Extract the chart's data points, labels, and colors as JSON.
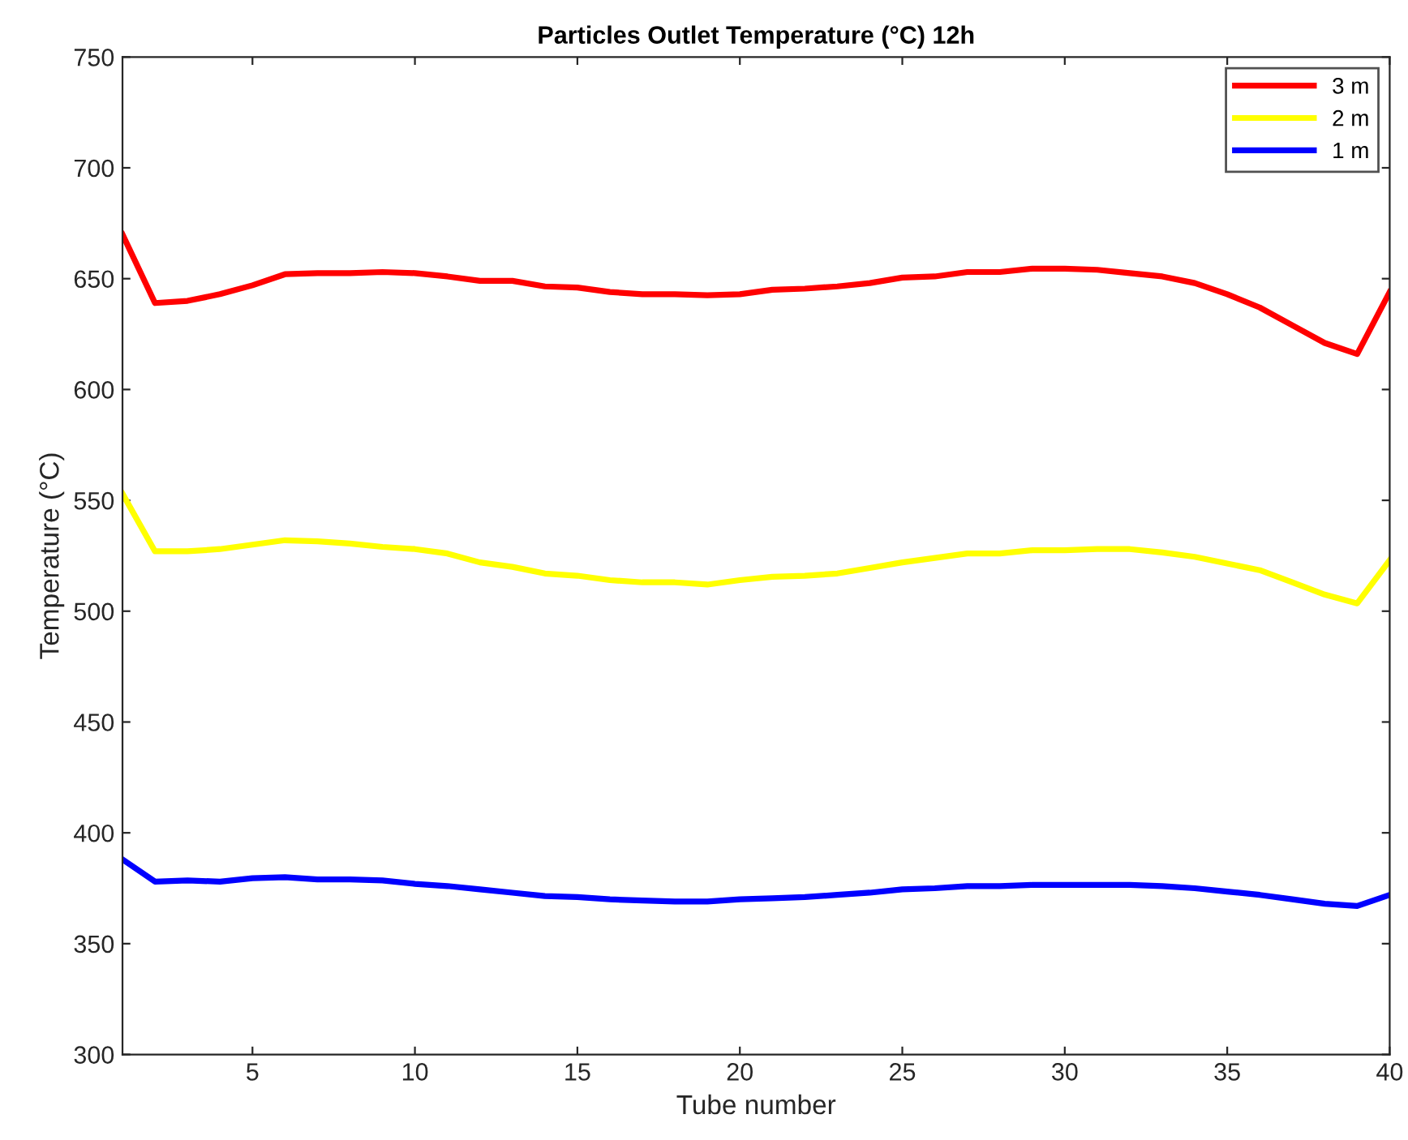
{
  "chart_data": {
    "type": "line",
    "title": "Particles Outlet Temperature (°C) 12h",
    "xlabel": "Tube number",
    "ylabel": "Temperature (°C)",
    "x": [
      1,
      2,
      3,
      4,
      5,
      6,
      7,
      8,
      9,
      10,
      11,
      12,
      13,
      14,
      15,
      16,
      17,
      18,
      19,
      20,
      21,
      22,
      23,
      24,
      25,
      26,
      27,
      28,
      29,
      30,
      31,
      32,
      33,
      34,
      35,
      36,
      37,
      38,
      39,
      40
    ],
    "series": [
      {
        "name": "3 m",
        "color": "#ff0000",
        "values": [
          670,
          639,
          640,
          643,
          647,
          652,
          652.5,
          652.5,
          653,
          652.5,
          651,
          649,
          649,
          646.5,
          646,
          644,
          643,
          643,
          642.5,
          643,
          645,
          645.5,
          646.5,
          648,
          650.5,
          651,
          653,
          653,
          654.5,
          654.5,
          654,
          652.5,
          651,
          648,
          643,
          637,
          629,
          621,
          616,
          644
        ]
      },
      {
        "name": "2 m",
        "color": "#ffff00",
        "values": [
          553,
          527,
          527,
          528,
          530,
          532,
          531.5,
          530.5,
          529,
          528,
          526,
          522,
          520,
          517,
          516,
          514,
          513,
          513,
          512,
          514,
          515.5,
          516,
          517,
          519.5,
          522,
          524,
          526,
          526,
          527.5,
          527.5,
          528,
          528,
          526.5,
          524.5,
          521.5,
          518.5,
          513,
          507.5,
          503.5,
          523
        ]
      },
      {
        "name": "1 m",
        "color": "#0000ff",
        "values": [
          388,
          378,
          378.5,
          378,
          379.5,
          380,
          379,
          379,
          378.5,
          377,
          376,
          374.5,
          373,
          371.5,
          371,
          370,
          369.5,
          369,
          369,
          370,
          370.5,
          371,
          372,
          373,
          374.5,
          375,
          376,
          376,
          376.5,
          376.5,
          376.5,
          376.5,
          376,
          375,
          373.5,
          372,
          370,
          368,
          367,
          372
        ]
      }
    ],
    "xlim": [
      1,
      40
    ],
    "xticks": [
      5,
      10,
      15,
      20,
      25,
      30,
      35,
      40
    ],
    "ylim": [
      300,
      750
    ],
    "yticks": [
      300,
      350,
      400,
      450,
      500,
      550,
      600,
      650,
      700,
      750
    ],
    "legend": "top right",
    "grid": false,
    "line_style": "solid",
    "marker": "none"
  }
}
